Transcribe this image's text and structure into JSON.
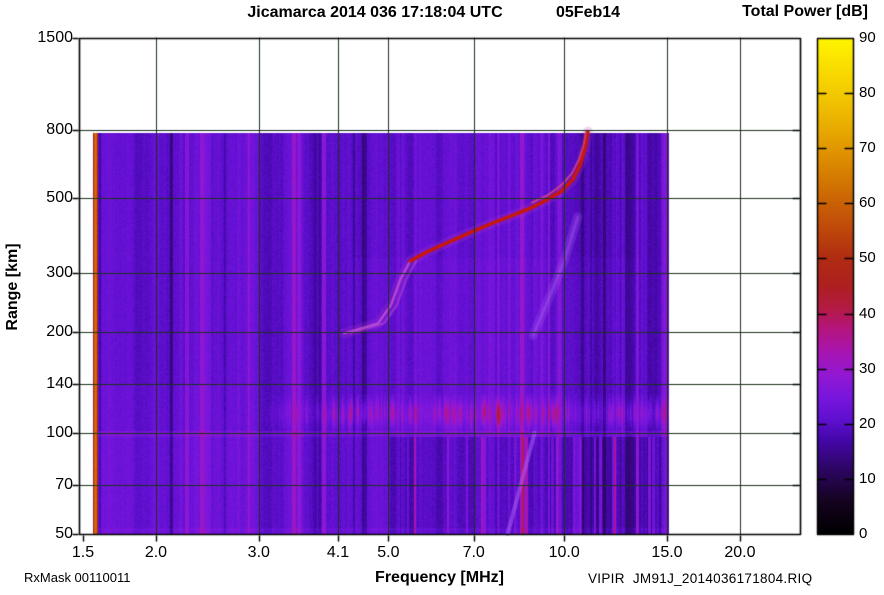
{
  "header": {
    "title": "Jicamarca 2014 036 17:18:04 UTC",
    "date": "05Feb14"
  },
  "colorbar": {
    "title": "Total Power [dB]",
    "min": 0,
    "max": 90,
    "tick_labels": [
      "90",
      "80",
      "70",
      "60",
      "50",
      "40",
      "30",
      "20",
      "10",
      "0"
    ],
    "tick_values": [
      90,
      80,
      70,
      60,
      50,
      40,
      30,
      20,
      10,
      0
    ]
  },
  "axes": {
    "x": {
      "label": "Frequency [MHz]",
      "scale": "log",
      "tick_labels": [
        "1.5",
        "2.0",
        "3.0",
        "4.1",
        "5.0",
        "7.0",
        "10.0",
        "15.0",
        "20.0"
      ],
      "tick_values": [
        1.5,
        2.0,
        3.0,
        4.1,
        5.0,
        7.0,
        10.0,
        15.0,
        20.0
      ]
    },
    "y": {
      "label": "Range [km]",
      "scale": "log",
      "tick_labels": [
        "50",
        "70",
        "100",
        "140",
        "200",
        "300",
        "500",
        "800",
        "1500"
      ],
      "tick_values": [
        50,
        70,
        100,
        140,
        200,
        300,
        500,
        800,
        1500
      ]
    }
  },
  "footer": {
    "rx_mask": "RxMask 00110011",
    "filename": "VIPIR  JM91J_2014036171804.RIQ"
  },
  "chart_data": {
    "type": "heatmap",
    "title": "Jicamarca 2014 036 17:18:04 UTC 05Feb14",
    "xlabel": "Frequency [MHz]",
    "ylabel": "Range [km]",
    "zlabel": "Total Power [dB]",
    "x_scale": "log",
    "y_scale": "log",
    "x_ticks": [
      1.5,
      2.0,
      3.0,
      4.1,
      5.0,
      7.0,
      10.0,
      15.0,
      20.0
    ],
    "y_ticks": [
      50,
      70,
      100,
      140,
      200,
      300,
      500,
      800,
      1500
    ],
    "xlim_mhz": [
      1.48,
      25.3
    ],
    "ylim_km": [
      50,
      1500
    ],
    "zlim_db": [
      0,
      90
    ],
    "sweep_extent": {
      "f_mhz": [
        1.56,
        15.1
      ],
      "range_km": [
        50,
        780
      ]
    },
    "background_db": 21,
    "colormap_stops": [
      [
        0,
        "#000000"
      ],
      [
        6,
        "#150420"
      ],
      [
        12,
        "#2e0666"
      ],
      [
        17,
        "#4407a8"
      ],
      [
        21,
        "#6110d2"
      ],
      [
        25,
        "#7a16dd"
      ],
      [
        29,
        "#9318d2"
      ],
      [
        33,
        "#a815b2"
      ],
      [
        37,
        "#b41580"
      ],
      [
        41,
        "#b41a44"
      ],
      [
        45,
        "#ae2020"
      ],
      [
        50,
        "#b02c12"
      ],
      [
        56,
        "#c04c0a"
      ],
      [
        62,
        "#ce6c04"
      ],
      [
        68,
        "#dd8d00"
      ],
      [
        74,
        "#e9ad00"
      ],
      [
        80,
        "#f3ca00"
      ],
      [
        85,
        "#fadf00"
      ],
      [
        90,
        "#fff600"
      ]
    ],
    "features": [
      {
        "name": "calibration-stripe",
        "f_mhz": 1.57,
        "power_db": 62,
        "range_km": [
          50,
          780
        ]
      },
      {
        "name": "E-region-echo-band",
        "f_range_mhz": [
          3.0,
          15.0
        ],
        "range_km": [
          100,
          128
        ],
        "peak_power_db": 38
      },
      {
        "name": "F-layer-trace",
        "power_db": 46,
        "points_mhz_km": [
          [
            4.2,
            198
          ],
          [
            4.8,
            212
          ],
          [
            5.05,
            240
          ],
          [
            5.25,
            288
          ],
          [
            5.45,
            325
          ],
          [
            5.8,
            345
          ],
          [
            6.3,
            368
          ],
          [
            6.9,
            395
          ],
          [
            7.5,
            420
          ],
          [
            8.1,
            442
          ],
          [
            8.7,
            465
          ],
          [
            9.3,
            492
          ],
          [
            9.9,
            525
          ],
          [
            10.35,
            568
          ],
          [
            10.65,
            628
          ],
          [
            10.85,
            700
          ],
          [
            10.98,
            790
          ]
        ]
      },
      {
        "name": "F-layer-second-trace",
        "power_db": 36,
        "points_mhz_km": [
          [
            8.8,
            485
          ],
          [
            9.4,
            512
          ],
          [
            9.9,
            548
          ],
          [
            10.3,
            592
          ],
          [
            10.6,
            650
          ],
          [
            10.8,
            722
          ],
          [
            10.9,
            795
          ]
        ]
      },
      {
        "name": "oblique-echo",
        "power_db": 26,
        "points_mhz_km": [
          [
            8.85,
            195
          ],
          [
            9.4,
            250
          ],
          [
            10.0,
            325
          ],
          [
            10.55,
            440
          ]
        ]
      },
      {
        "name": "low-altitude-streak",
        "power_db": 27,
        "points_mhz_km": [
          [
            8.0,
            50
          ],
          [
            8.9,
            100
          ]
        ]
      },
      {
        "name": "rfi-dark-band",
        "f_range_mhz": [
          11.3,
          14.8
        ],
        "power_db": 17
      },
      {
        "name": "rfi-bright-band",
        "f_range_mhz": [
          9.0,
          9.6
        ],
        "power_db": 24
      }
    ]
  }
}
